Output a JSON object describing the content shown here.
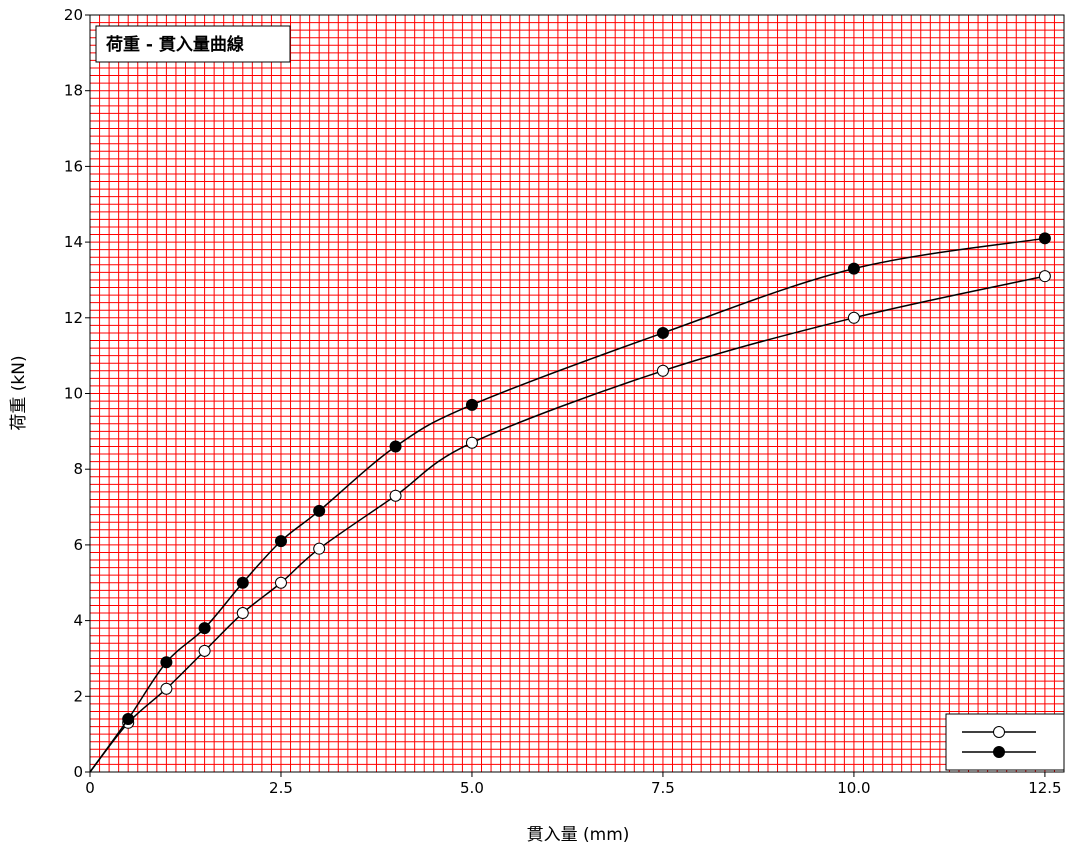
{
  "chart_data": {
    "type": "line",
    "title": "荷重 - 貫入量曲線",
    "xlabel": "貫入量 (mm)",
    "ylabel": "荷重 (kN)",
    "xlim": [
      0,
      12.75
    ],
    "ylim": [
      0,
      20
    ],
    "xticks": [
      "0",
      "2.5",
      "5.0",
      "7.5",
      "10.0",
      "12.5"
    ],
    "yticks": [
      "0",
      "2",
      "4",
      "6",
      "8",
      "10",
      "12",
      "14",
      "16",
      "18",
      "20"
    ],
    "grid": true,
    "legend_position": "bottom-right",
    "colors": {
      "grid": "#ff0000",
      "line": "#000000",
      "legend_bg": "#ffffff"
    },
    "series": [
      {
        "marker": "open-circle",
        "x": [
          0,
          0.5,
          1.0,
          1.5,
          2.0,
          2.5,
          3.0,
          4.0,
          5.0,
          7.5,
          10.0,
          12.5
        ],
        "y": [
          0,
          1.3,
          2.2,
          3.2,
          4.2,
          5.0,
          5.9,
          7.3,
          8.7,
          10.6,
          12.0,
          13.1
        ]
      },
      {
        "marker": "filled-circle",
        "x": [
          0,
          0.5,
          1.0,
          1.5,
          2.0,
          2.5,
          3.0,
          4.0,
          5.0,
          7.5,
          10.0,
          12.5
        ],
        "y": [
          0,
          1.4,
          2.9,
          3.8,
          5.0,
          6.1,
          6.9,
          8.6,
          9.7,
          11.6,
          13.3,
          14.1
        ]
      }
    ]
  }
}
